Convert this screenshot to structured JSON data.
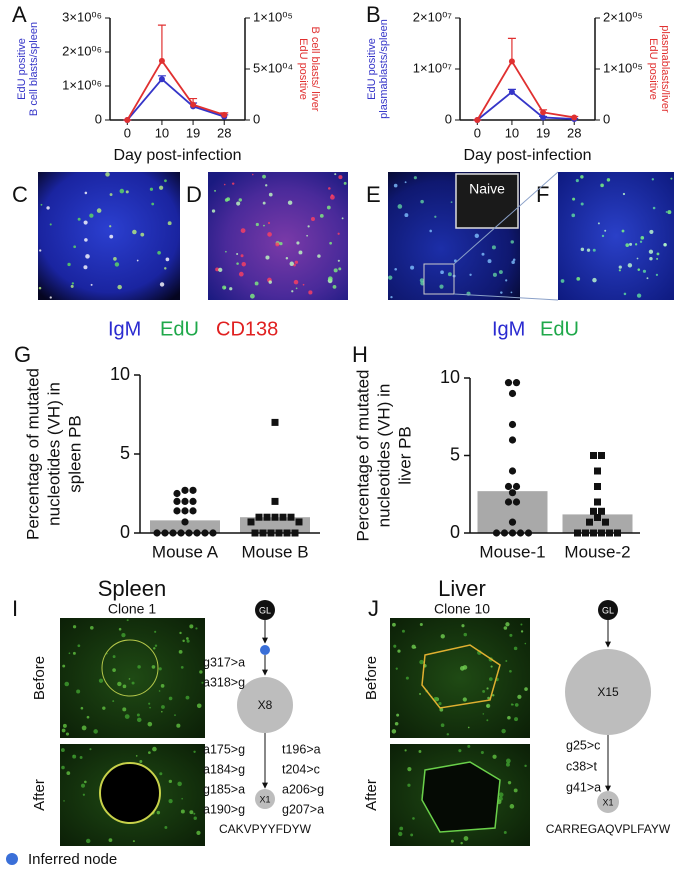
{
  "chart_data": [
    {
      "type": "line",
      "xlabel": "Day post-infection",
      "ylabel": [
        "EdU positive",
        "B cell blasts/spleen"
      ],
      "y2label": [
        "EdU positive",
        "B cell blasts/ liver"
      ],
      "x": [
        0,
        10,
        19,
        28
      ],
      "xlim": [
        -5,
        34
      ],
      "xticks": [
        0,
        10,
        19,
        28
      ],
      "ylim": [
        0,
        3000000
      ],
      "yticks": [
        0,
        {
          "value": 1000000,
          "label": "1×10⁰⁶"
        },
        {
          "value": 2000000,
          "label": "2×10⁰⁶"
        },
        {
          "value": 3000000,
          "label": "3×10⁰⁶"
        }
      ],
      "y2lim": [
        0,
        100000
      ],
      "y2ticks": [
        0,
        {
          "value": 50000,
          "label": "5×10⁰⁴"
        },
        {
          "value": 100000,
          "label": "1×10⁰⁵"
        }
      ],
      "series": [
        {
          "color": "#3535c8",
          "values": [
            0,
            1200000,
            400000,
            100000
          ],
          "errors": [
            0,
            100000,
            100000,
            50000
          ]
        },
        {
          "color": "#e03030",
          "axis": "y2",
          "values": [
            0,
            58000,
            15000,
            5000
          ],
          "errors": [
            0,
            35000,
            6000,
            2000
          ]
        }
      ]
    },
    {
      "type": "line",
      "xlabel": "Day post-infection",
      "ylabel": [
        "EdU positive",
        "plasmablasts/spleen"
      ],
      "y2label": [
        "EdU positive",
        "plasmablasts/liver"
      ],
      "x": [
        0,
        10,
        19,
        28
      ],
      "xlim": [
        -5,
        34
      ],
      "xticks": [
        0,
        10,
        19,
        28
      ],
      "ylim": [
        0,
        20000000
      ],
      "yticks": [
        0,
        {
          "value": 10000000,
          "label": "1×10⁰⁷"
        },
        {
          "value": 20000000,
          "label": "2×10⁰⁷"
        }
      ],
      "y2lim": [
        0,
        200000
      ],
      "y2ticks": [
        0,
        {
          "value": 100000,
          "label": "1×10⁰⁵"
        },
        {
          "value": 200000,
          "label": "2×10⁰⁵"
        }
      ],
      "series": [
        {
          "color": "#3535c8",
          "values": [
            0,
            5500000,
            500000,
            200000
          ],
          "errors": [
            0,
            500000,
            200000,
            100000
          ]
        },
        {
          "color": "#e03030",
          "axis": "y2",
          "values": [
            0,
            115000,
            15000,
            5000
          ],
          "errors": [
            0,
            45000,
            5000,
            2000
          ]
        }
      ]
    },
    {
      "type": "bar",
      "ylabel": [
        "Percentage of mutated",
        "nucleotides (VH) in",
        "spleen PB"
      ],
      "categories": [
        "Mouse A",
        "Mouse B"
      ],
      "values": [
        0.8,
        1.0
      ],
      "color": "#a9a9a9",
      "points": [
        [
          2.7,
          2.7,
          2.5,
          2.0,
          2.0,
          2.0,
          1.4,
          1.4,
          1.4,
          0.7,
          0,
          0,
          0,
          0,
          0,
          0,
          0,
          0
        ],
        [
          7.0,
          2.0,
          1.0,
          1.0,
          1.0,
          1.0,
          1.0,
          0.7,
          0.7,
          0,
          0,
          0,
          0,
          0,
          0
        ]
      ],
      "markers": [
        "circle",
        "square"
      ],
      "ylim": [
        0,
        10
      ],
      "yticks": [
        0,
        5,
        10
      ]
    },
    {
      "type": "bar",
      "ylabel": [
        "Percentage of mutated",
        "nucleotides (VH) in",
        "liver PB"
      ],
      "categories": [
        "Mouse-1",
        "Mouse-2"
      ],
      "values": [
        2.7,
        1.2
      ],
      "color": "#a9a9a9",
      "points": [
        [
          9.7,
          9.7,
          9.0,
          7.0,
          6.0,
          4.0,
          3.0,
          3.0,
          2.6,
          2.0,
          2.0,
          0.7,
          0,
          0,
          0,
          0,
          0
        ],
        [
          5.0,
          5.0,
          4.0,
          3.0,
          2.0,
          1.4,
          1.4,
          1.0,
          0.7,
          0.7,
          0,
          0,
          0,
          0,
          0,
          0
        ]
      ],
      "markers": [
        "circle",
        "square"
      ],
      "ylim": [
        0,
        10
      ],
      "yticks": [
        0,
        5,
        10
      ]
    }
  ],
  "panel_labels": [
    "A",
    "B",
    "C",
    "D",
    "E",
    "F",
    "G",
    "H",
    "I",
    "J"
  ],
  "stain_legend_left": [
    "IgM",
    "EdU",
    "CD138"
  ],
  "stain_legend_right": [
    "IgM",
    "EdU"
  ],
  "inset_label": "Naive",
  "lineage": [
    {
      "tissue": "Spleen",
      "clone": "Clone 1",
      "before": "Before",
      "after": "After",
      "nodes": [
        "GL",
        "X8",
        "X1"
      ],
      "mutations_1": [
        "g317>a",
        "a318>g"
      ],
      "mutations_2_left": [
        "a175>g",
        "a184>g",
        "g185>a",
        "a190>g"
      ],
      "mutations_2_right": [
        "t196>a",
        "t204>c",
        "a206>g",
        "g207>a"
      ],
      "cdr3": "CAKVPYYFDYW"
    },
    {
      "tissue": "Liver",
      "clone": "Clone 10",
      "before": "Before",
      "after": "After",
      "nodes": [
        "GL",
        "X15",
        "X1"
      ],
      "mutations_1": [
        "g25>c",
        "c38>t",
        "g41>a"
      ],
      "cdr3": "CARREGAQVPLFAYW"
    }
  ],
  "legend": "Inferred node"
}
